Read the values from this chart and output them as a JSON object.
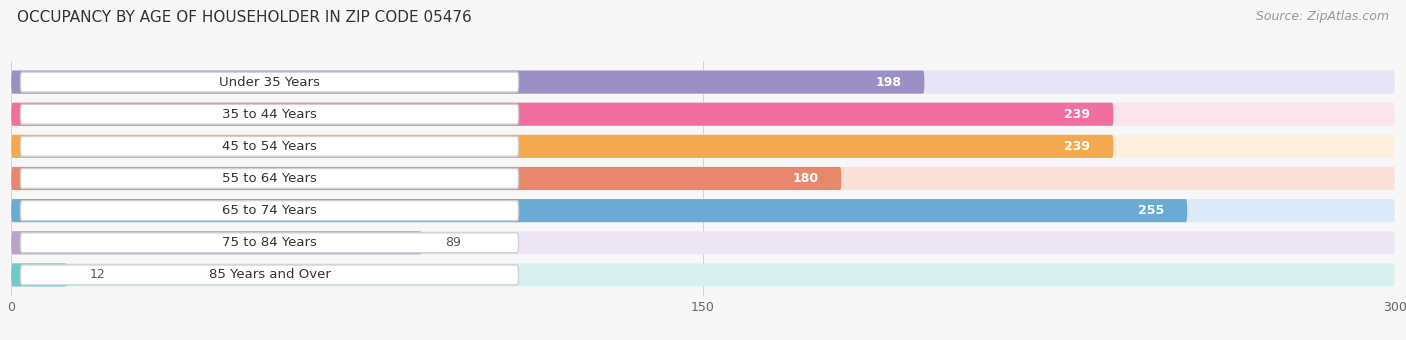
{
  "title": "OCCUPANCY BY AGE OF HOUSEHOLDER IN ZIP CODE 05476",
  "source": "Source: ZipAtlas.com",
  "categories": [
    "Under 35 Years",
    "35 to 44 Years",
    "45 to 54 Years",
    "55 to 64 Years",
    "65 to 74 Years",
    "75 to 84 Years",
    "85 Years and Over"
  ],
  "values": [
    198,
    239,
    239,
    180,
    255,
    89,
    12
  ],
  "bar_colors": [
    "#9b8fc6",
    "#f06fa0",
    "#f5a94e",
    "#e8876b",
    "#6aabd5",
    "#b9a2cc",
    "#6ecac9"
  ],
  "bar_bg_colors": [
    "#e8e4f5",
    "#fce4ee",
    "#fef0dc",
    "#fbe0d8",
    "#daeaf8",
    "#ede5f5",
    "#d8f0f0"
  ],
  "xlim": [
    0,
    300
  ],
  "xticks": [
    0,
    150,
    300
  ],
  "bg_color": "#f7f7f7",
  "title_fontsize": 11,
  "source_fontsize": 9,
  "label_fontsize": 9.5,
  "value_fontsize": 9
}
